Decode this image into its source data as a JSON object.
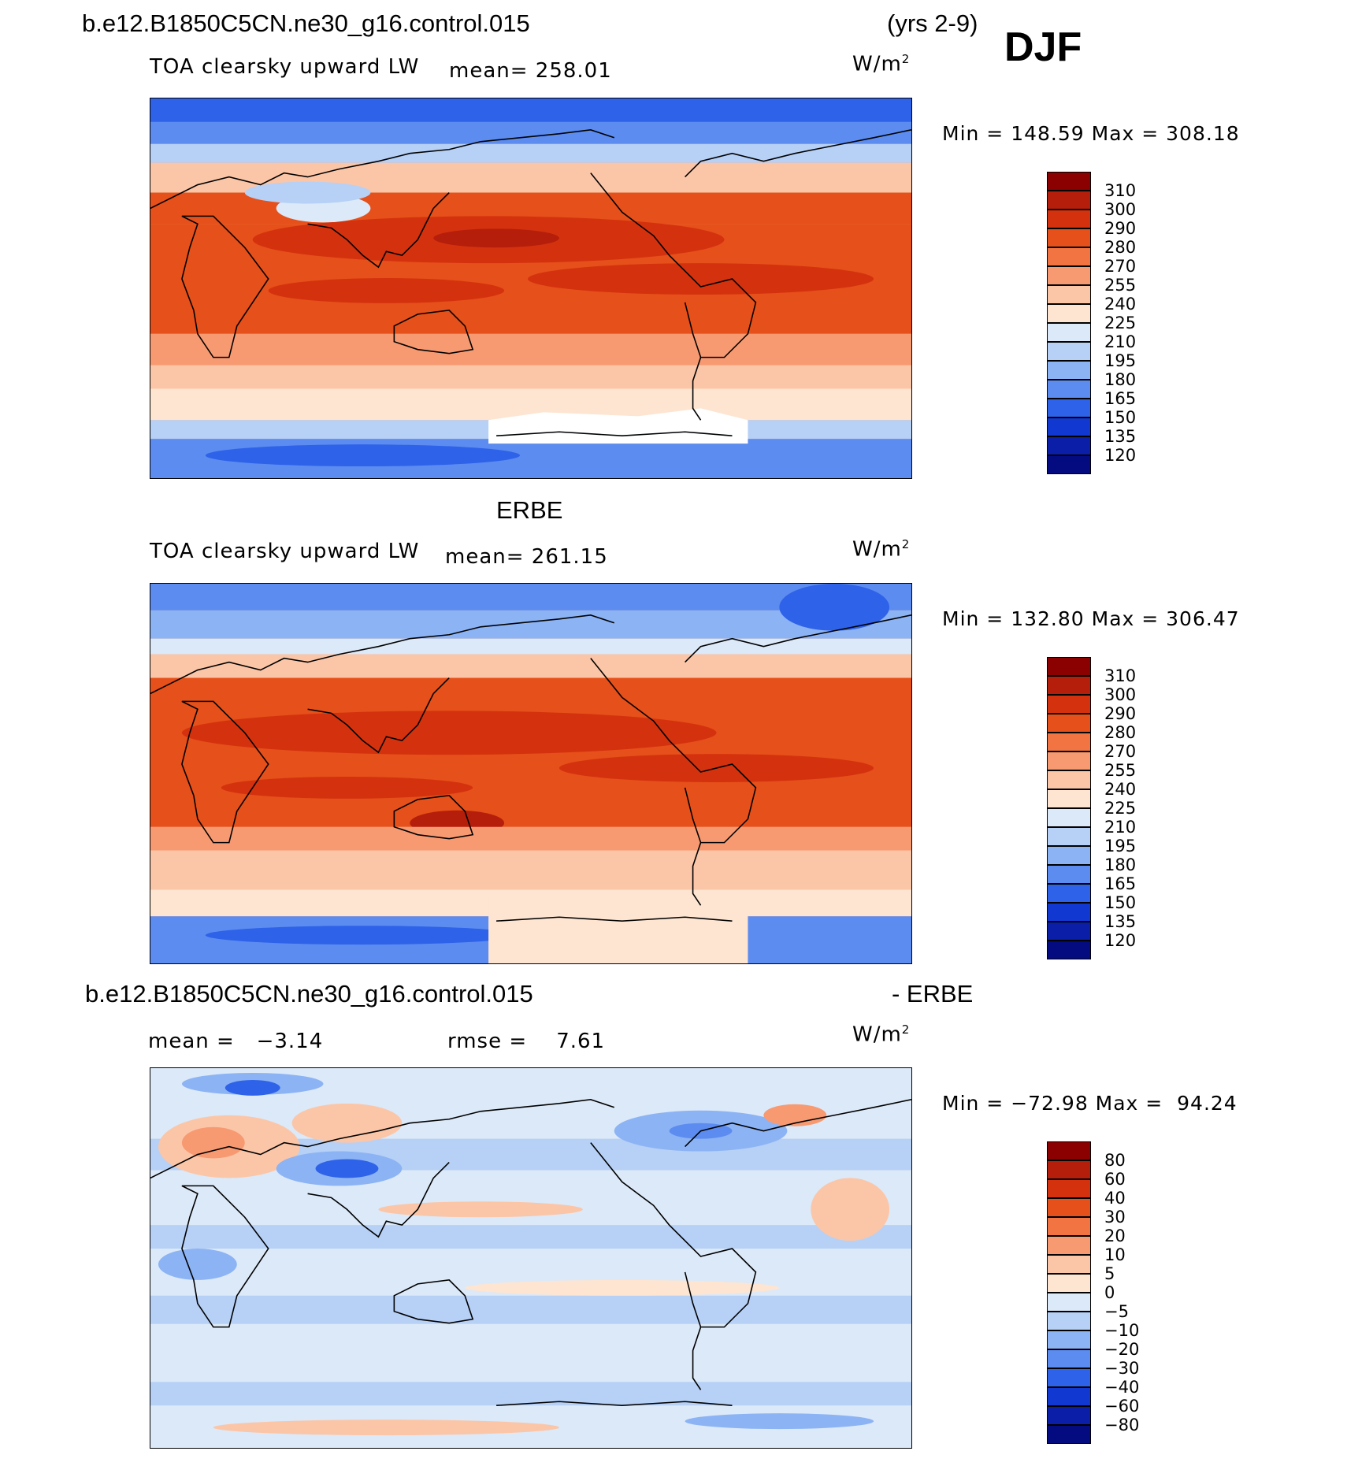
{
  "page": {
    "case_title": "b.e12.B1850C5CN.ne30_g16.control.015",
    "years": "(yrs 2-9)",
    "season": "DJF"
  },
  "panels": [
    {
      "id": "model",
      "header": "",
      "variable": "TOA clearsky upward LW",
      "mean_text": "mean= 258.01",
      "units_base": "W/m",
      "units_exp": "2",
      "minmax_text": "Min = 148.59 Max = 308.18",
      "palette": "abs"
    },
    {
      "id": "obs",
      "header": "ERBE",
      "variable": "TOA clearsky upward LW",
      "mean_text": "mean= 261.15",
      "units_base": "W/m",
      "units_exp": "2",
      "minmax_text": "Min = 132.80 Max = 306.47",
      "palette": "abs"
    },
    {
      "id": "diff",
      "header": "b.e12.B1850C5CN.ne30_g16.control.015",
      "header_right": "- ERBE",
      "mean_text": "mean =   −3.14",
      "rmse_text": "rmse =    7.61",
      "units_base": "W/m",
      "units_exp": "2",
      "minmax_text": "Min = −72.98 Max =  94.24",
      "palette": "diff"
    }
  ],
  "colorbars": {
    "abs": {
      "labels": [
        "310",
        "300",
        "290",
        "280",
        "270",
        "255",
        "240",
        "225",
        "210",
        "195",
        "180",
        "165",
        "150",
        "135",
        "120"
      ],
      "colors": [
        "#8b0000",
        "#b51e0b",
        "#d4320e",
        "#e6501a",
        "#f27442",
        "#f79a72",
        "#fbc6a8",
        "#fde5d2",
        "#dce9f8",
        "#b6d0f6",
        "#8cb3f4",
        "#5c8cf0",
        "#2e62e8",
        "#1238d2",
        "#0a1ea8",
        "#040a80"
      ]
    },
    "diff": {
      "labels": [
        "80",
        "60",
        "40",
        "30",
        "20",
        "10",
        "5",
        "0",
        "−5",
        "−10",
        "−20",
        "−30",
        "−40",
        "−60",
        "−80"
      ],
      "colors": [
        "#8b0000",
        "#b51e0b",
        "#d4320e",
        "#e6501a",
        "#f27442",
        "#f79a72",
        "#fbc6a8",
        "#fde5d2",
        "#dce9f8",
        "#b6d0f6",
        "#8cb3f4",
        "#5c8cf0",
        "#2e62e8",
        "#1238d2",
        "#0a1ea8",
        "#040a80"
      ]
    }
  }
}
